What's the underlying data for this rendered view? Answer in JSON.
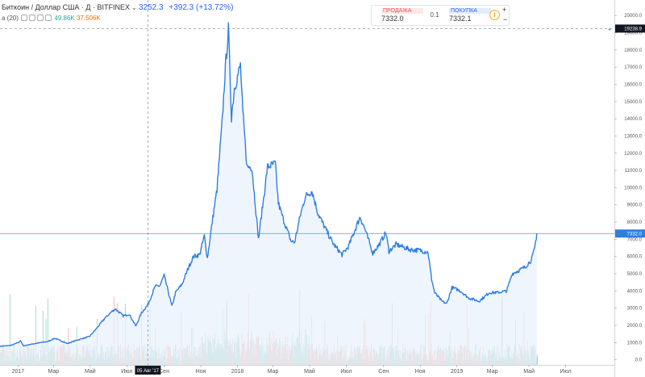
{
  "header": {
    "symbol_line": "Биткоин / Доллар США · Д · BITFINEX",
    "close": "3252.3",
    "change": "+392.3 (+13.72%)",
    "indicator": "а (20)",
    "volume_up": "49.86K",
    "volume_down": "37.506K"
  },
  "order_widget": {
    "sell_label": "ПРОДАЖА",
    "sell_price": "7332.0",
    "spread": "0.1",
    "buy_label": "ПОКУПКА",
    "buy_price": "7332.1",
    "info_icon": "info-icon",
    "plus_icon": "plus-icon",
    "minus_icon": "minus-icon"
  },
  "colors": {
    "line": "#2f7ee0",
    "area": "#e9f2fb",
    "vol_up": "#8fcfc4",
    "vol_down": "#f3a59f",
    "price_badge": "#2f7ee0",
    "crosshair_badge": "#131722"
  },
  "crosshair": {
    "x_label": "05 Авг '17",
    "y_label": "19238.9",
    "x_date": "2017-08-05",
    "y_value": 19238.9
  },
  "last_price_label": "7332.0",
  "chart_data": {
    "type": "line",
    "title": "",
    "x_tick_labels": [
      "2017",
      "Мар",
      "Май",
      "Июл",
      "Сен",
      "Ноя",
      "2018",
      "Мар",
      "Май",
      "Июл",
      "Сен",
      "Ноя",
      "2019",
      "Мар",
      "Май",
      "Июл"
    ],
    "x_tick_dates": [
      "2017-01-01",
      "2017-03-01",
      "2017-05-01",
      "2017-07-01",
      "2017-09-01",
      "2017-11-01",
      "2018-01-01",
      "2018-03-01",
      "2018-05-01",
      "2018-07-01",
      "2018-09-01",
      "2018-11-01",
      "2019-01-01",
      "2019-03-01",
      "2019-05-01",
      "2019-07-01"
    ],
    "y_ticks": [
      0,
      1000,
      2000,
      3000,
      4000,
      5000,
      6000,
      7000,
      8000,
      9000,
      10000,
      11000,
      12000,
      13000,
      14000,
      15000,
      16000,
      17000,
      18000,
      19000,
      20000
    ],
    "y_tick_labels": [
      "0.0",
      "1000.0",
      "2000.0",
      "3000.0",
      "4000.0",
      "5000.0",
      "6000.0",
      "7000.0",
      "8000.0",
      "9000.0",
      "10000.0",
      "11000.0",
      "12000.0",
      "13000.0",
      "14000.0",
      "15000.0",
      "16000.0",
      "17000.0",
      "18000.0",
      "19000.0",
      "20000.0"
    ],
    "ylim": [
      -300,
      20900
    ],
    "xlim": [
      "2016-12-02",
      "2019-09-20"
    ],
    "series": [
      {
        "points": [
          [
            "2016-12-02",
            780
          ],
          [
            "2016-12-20",
            830
          ],
          [
            "2017-01-03",
            1020
          ],
          [
            "2017-01-05",
            1130
          ],
          [
            "2017-01-10",
            800
          ],
          [
            "2017-01-20",
            880
          ],
          [
            "2017-02-01",
            960
          ],
          [
            "2017-02-20",
            1060
          ],
          [
            "2017-03-03",
            1250
          ],
          [
            "2017-03-24",
            940
          ],
          [
            "2017-04-10",
            1150
          ],
          [
            "2017-04-30",
            1350
          ],
          [
            "2017-05-10",
            1750
          ],
          [
            "2017-05-25",
            2400
          ],
          [
            "2017-06-06",
            2800
          ],
          [
            "2017-06-12",
            2950
          ],
          [
            "2017-06-25",
            2550
          ],
          [
            "2017-07-05",
            2650
          ],
          [
            "2017-07-16",
            1950
          ],
          [
            "2017-07-25",
            2700
          ],
          [
            "2017-08-05",
            3200
          ],
          [
            "2017-08-17",
            4250
          ],
          [
            "2017-08-25",
            4300
          ],
          [
            "2017-09-01",
            4900
          ],
          [
            "2017-09-05",
            4350
          ],
          [
            "2017-09-14",
            3100
          ],
          [
            "2017-09-20",
            3900
          ],
          [
            "2017-10-01",
            4400
          ],
          [
            "2017-10-12",
            5400
          ],
          [
            "2017-10-20",
            6000
          ],
          [
            "2017-10-30",
            6100
          ],
          [
            "2017-11-07",
            7200
          ],
          [
            "2017-11-12",
            5900
          ],
          [
            "2017-11-20",
            8000
          ],
          [
            "2017-11-28",
            9900
          ],
          [
            "2017-12-07",
            14000
          ],
          [
            "2017-12-11",
            16500
          ],
          [
            "2017-12-17",
            19200
          ],
          [
            "2017-12-22",
            14100
          ],
          [
            "2017-12-27",
            15800
          ],
          [
            "2018-01-06",
            17100
          ],
          [
            "2018-01-10",
            14300
          ],
          [
            "2018-01-17",
            11200
          ],
          [
            "2018-01-25",
            11200
          ],
          [
            "2018-02-05",
            7000
          ],
          [
            "2018-02-14",
            9500
          ],
          [
            "2018-02-20",
            11200
          ],
          [
            "2018-03-05",
            11400
          ],
          [
            "2018-03-10",
            9100
          ],
          [
            "2018-03-18",
            8200
          ],
          [
            "2018-03-31",
            6900
          ],
          [
            "2018-04-06",
            6800
          ],
          [
            "2018-04-15",
            8300
          ],
          [
            "2018-04-24",
            9500
          ],
          [
            "2018-05-05",
            9800
          ],
          [
            "2018-05-15",
            8500
          ],
          [
            "2018-05-29",
            7500
          ],
          [
            "2018-06-10",
            6700
          ],
          [
            "2018-06-24",
            6100
          ],
          [
            "2018-07-05",
            6600
          ],
          [
            "2018-07-24",
            8300
          ],
          [
            "2018-08-01",
            7600
          ],
          [
            "2018-08-14",
            6200
          ],
          [
            "2018-08-25",
            6700
          ],
          [
            "2018-09-05",
            7400
          ],
          [
            "2018-09-10",
            6300
          ],
          [
            "2018-09-22",
            6700
          ],
          [
            "2018-10-15",
            6400
          ],
          [
            "2018-11-01",
            6350
          ],
          [
            "2018-11-14",
            6250
          ],
          [
            "2018-11-20",
            4700
          ],
          [
            "2018-11-25",
            3900
          ],
          [
            "2018-12-07",
            3400
          ],
          [
            "2018-12-15",
            3250
          ],
          [
            "2018-12-24",
            4200
          ],
          [
            "2019-01-07",
            4000
          ],
          [
            "2019-01-20",
            3600
          ],
          [
            "2019-02-07",
            3400
          ],
          [
            "2019-02-24",
            3900
          ],
          [
            "2019-03-10",
            3900
          ],
          [
            "2019-03-25",
            4000
          ],
          [
            "2019-04-03",
            5000
          ],
          [
            "2019-04-15",
            5200
          ],
          [
            "2019-04-25",
            5400
          ],
          [
            "2019-05-05",
            5800
          ],
          [
            "2019-05-10",
            6400
          ],
          [
            "2019-05-14",
            7332
          ]
        ]
      }
    ]
  }
}
